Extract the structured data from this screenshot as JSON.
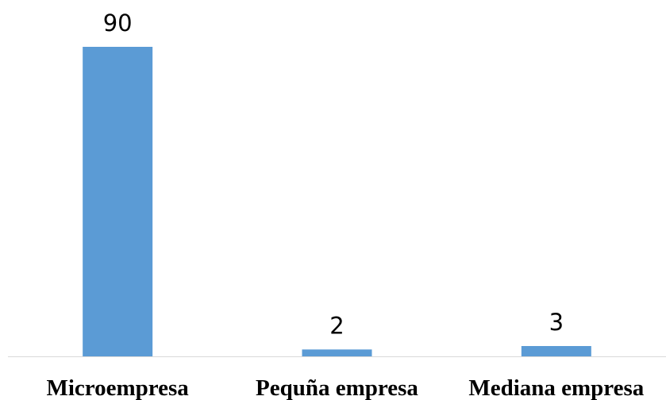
{
  "chart_data": {
    "type": "bar",
    "title": "",
    "xlabel": "",
    "ylabel": "",
    "categories": [
      "Microempresa",
      "Pequña empresa",
      "Mediana empresa"
    ],
    "values": [
      90,
      2,
      3
    ],
    "value_labels": [
      "90",
      "2",
      "3"
    ],
    "ylim": [
      0,
      90
    ],
    "grid": false,
    "legend": "none",
    "colors": {
      "bar": "#5B9BD5",
      "axis": "#D9D9D9",
      "text": "#000000"
    }
  }
}
